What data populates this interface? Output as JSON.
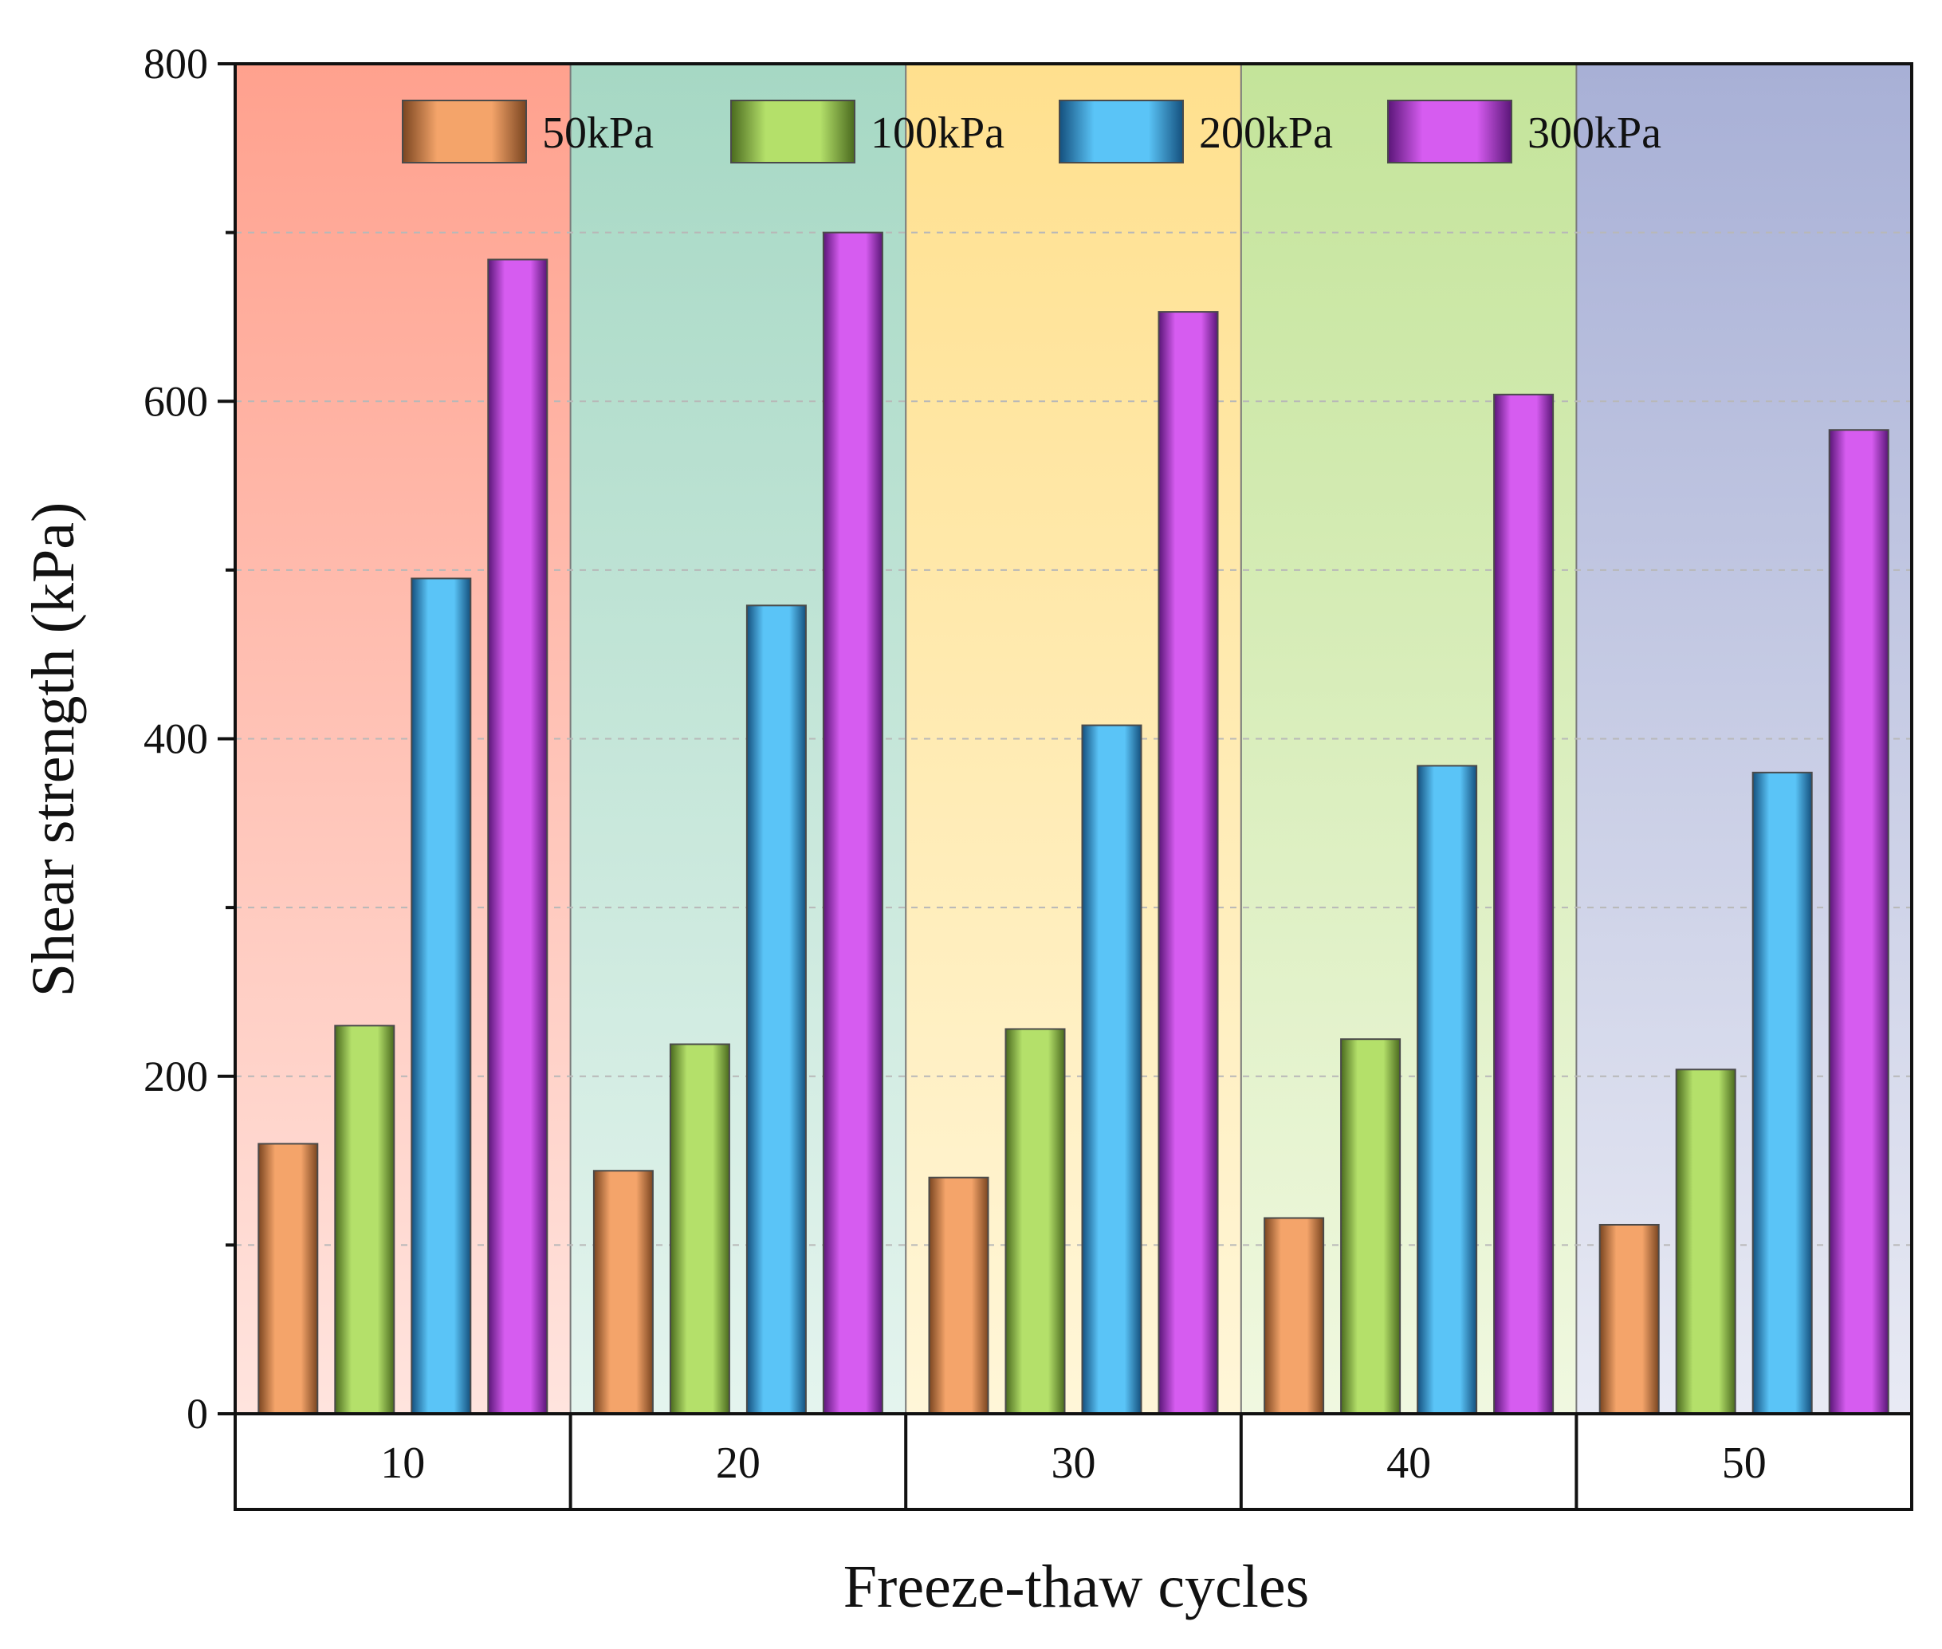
{
  "chart_data": {
    "type": "bar",
    "title": "",
    "xlabel": "Freeze-thaw cycles",
    "ylabel": "Shear strength (kPa)",
    "ylim": [
      0,
      800
    ],
    "yticks": [
      0,
      200,
      400,
      600,
      800
    ],
    "categories": [
      "10",
      "20",
      "30",
      "40",
      "50"
    ],
    "series": [
      {
        "name": "50kPa",
        "values": [
          160,
          144,
          140,
          116,
          112
        ]
      },
      {
        "name": "100kPa",
        "values": [
          230,
          219,
          228,
          222,
          204
        ]
      },
      {
        "name": "200kPa",
        "values": [
          495,
          479,
          408,
          384,
          380
        ]
      },
      {
        "name": "300kPa",
        "values": [
          684,
          700,
          653,
          604,
          583
        ]
      }
    ],
    "legend": {
      "placement": "top"
    },
    "grid": true,
    "colors": {
      "series": [
        "#f4a46a",
        "#b4e06a",
        "#5ac4f7",
        "#d65cf0"
      ],
      "series_dark": [
        "#7a4520",
        "#4a6a1e",
        "#14507e",
        "#5a1678"
      ],
      "panel_top": [
        "#ffa18e",
        "#a6d8c4",
        "#ffe08e",
        "#c4e49a",
        "#a8b0d6"
      ],
      "panel_bottom": [
        "#ffe4de",
        "#e4f4ee",
        "#fff6d8",
        "#f0f8e0",
        "#e8eaf4"
      ]
    }
  }
}
